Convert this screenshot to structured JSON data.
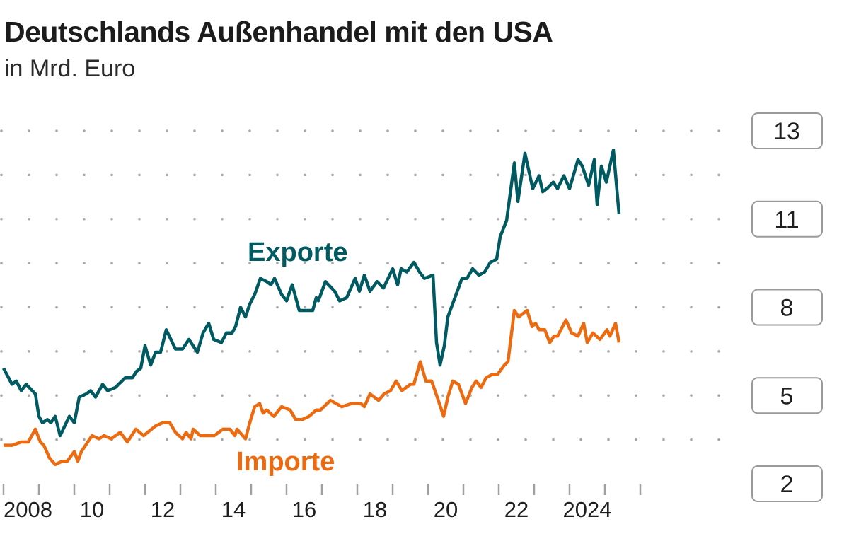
{
  "title": "Deutschlands Außenhandel mit den USA",
  "subtitle": "in Mrd. Euro",
  "chart_data": {
    "type": "line",
    "title": "Deutschlands Außenhandel mit den USA",
    "subtitle": "in Mrd. Euro",
    "xlabel": "",
    "ylabel": "",
    "x_tick_labels": [
      "2008",
      "10",
      "12",
      "14",
      "16",
      "18",
      "20",
      "22",
      "2024"
    ],
    "x_tick_years": [
      2008,
      2010,
      2012,
      2014,
      2016,
      2018,
      2020,
      2022,
      2024
    ],
    "xlim": [
      2008,
      2026
    ],
    "y_tick_labels": [
      "13",
      "11",
      "8",
      "5",
      "2"
    ],
    "ylim": [
      2,
      13
    ],
    "grid": "dotted horizontal",
    "colors": {
      "Exporte": "#005a62",
      "Importe": "#ec6b10"
    },
    "series": [
      {
        "name": "Exporte",
        "points": [
          [
            2008.0,
            5.6
          ],
          [
            2008.24,
            5.1
          ],
          [
            2008.36,
            5.2
          ],
          [
            2008.5,
            4.9
          ],
          [
            2008.64,
            5.1
          ],
          [
            2008.9,
            4.8
          ],
          [
            2009.0,
            4.1
          ],
          [
            2009.1,
            3.9
          ],
          [
            2009.24,
            4.0
          ],
          [
            2009.34,
            3.9
          ],
          [
            2009.46,
            4.1
          ],
          [
            2009.6,
            3.5
          ],
          [
            2009.86,
            4.1
          ],
          [
            2010.0,
            3.9
          ],
          [
            2010.14,
            4.7
          ],
          [
            2010.34,
            4.8
          ],
          [
            2010.46,
            4.9
          ],
          [
            2010.6,
            4.7
          ],
          [
            2010.8,
            5.1
          ],
          [
            2010.94,
            4.9
          ],
          [
            2011.16,
            5.0
          ],
          [
            2011.44,
            5.3
          ],
          [
            2011.64,
            5.3
          ],
          [
            2011.76,
            5.5
          ],
          [
            2011.88,
            5.6
          ],
          [
            2012.0,
            6.3
          ],
          [
            2012.16,
            5.7
          ],
          [
            2012.3,
            6.1
          ],
          [
            2012.44,
            6.1
          ],
          [
            2012.6,
            6.8
          ],
          [
            2012.86,
            6.2
          ],
          [
            2013.06,
            6.2
          ],
          [
            2013.24,
            6.5
          ],
          [
            2013.48,
            6.1
          ],
          [
            2013.64,
            6.7
          ],
          [
            2013.8,
            7.0
          ],
          [
            2013.94,
            6.5
          ],
          [
            2014.16,
            6.4
          ],
          [
            2014.3,
            6.7
          ],
          [
            2014.46,
            6.7
          ],
          [
            2014.56,
            6.9
          ],
          [
            2014.7,
            7.5
          ],
          [
            2014.84,
            7.2
          ],
          [
            2014.96,
            7.6
          ],
          [
            2015.1,
            7.9
          ],
          [
            2015.26,
            8.4
          ],
          [
            2015.44,
            8.3
          ],
          [
            2015.56,
            8.2
          ],
          [
            2015.66,
            8.4
          ],
          [
            2015.86,
            7.9
          ],
          [
            2016.0,
            7.7
          ],
          [
            2016.16,
            8.2
          ],
          [
            2016.36,
            7.4
          ],
          [
            2016.64,
            7.4
          ],
          [
            2016.74,
            7.4
          ],
          [
            2016.84,
            7.8
          ],
          [
            2016.9,
            7.7
          ],
          [
            2017.1,
            8.3
          ],
          [
            2017.36,
            8.0
          ],
          [
            2017.5,
            7.7
          ],
          [
            2017.7,
            7.8
          ],
          [
            2017.94,
            8.4
          ],
          [
            2018.06,
            8.0
          ],
          [
            2018.2,
            8.5
          ],
          [
            2018.36,
            8.0
          ],
          [
            2018.56,
            8.3
          ],
          [
            2018.74,
            8.1
          ],
          [
            2019.0,
            8.7
          ],
          [
            2019.14,
            8.2
          ],
          [
            2019.24,
            8.7
          ],
          [
            2019.4,
            8.6
          ],
          [
            2019.6,
            8.9
          ],
          [
            2019.76,
            8.6
          ],
          [
            2019.9,
            8.4
          ],
          [
            2020.14,
            8.5
          ],
          [
            2020.24,
            6.4
          ],
          [
            2020.34,
            5.7
          ],
          [
            2020.46,
            6.3
          ],
          [
            2020.56,
            7.2
          ],
          [
            2020.76,
            7.8
          ],
          [
            2020.96,
            8.4
          ],
          [
            2021.1,
            8.4
          ],
          [
            2021.26,
            8.7
          ],
          [
            2021.44,
            8.5
          ],
          [
            2021.6,
            8.6
          ],
          [
            2021.76,
            8.9
          ],
          [
            2021.94,
            9.0
          ],
          [
            2022.04,
            9.7
          ],
          [
            2022.22,
            10.2
          ],
          [
            2022.44,
            12.0
          ],
          [
            2022.54,
            10.8
          ],
          [
            2022.74,
            12.3
          ],
          [
            2022.96,
            11.2
          ],
          [
            2023.14,
            11.6
          ],
          [
            2023.24,
            11.1
          ],
          [
            2023.36,
            11.2
          ],
          [
            2023.54,
            11.4
          ],
          [
            2023.66,
            11.2
          ],
          [
            2023.84,
            11.6
          ],
          [
            2024.0,
            11.2
          ],
          [
            2024.24,
            12.1
          ],
          [
            2024.36,
            11.9
          ],
          [
            2024.54,
            11.3
          ],
          [
            2024.7,
            12.1
          ],
          [
            2024.78,
            10.7
          ],
          [
            2024.9,
            11.9
          ],
          [
            2025.04,
            11.4
          ],
          [
            2025.24,
            12.4
          ],
          [
            2025.4,
            10.4
          ]
        ]
      },
      {
        "name": "Importe",
        "points": [
          [
            2008.0,
            3.2
          ],
          [
            2008.24,
            3.2
          ],
          [
            2008.5,
            3.3
          ],
          [
            2008.7,
            3.3
          ],
          [
            2008.9,
            3.7
          ],
          [
            2009.04,
            3.3
          ],
          [
            2009.14,
            3.2
          ],
          [
            2009.3,
            2.8
          ],
          [
            2009.46,
            2.6
          ],
          [
            2009.66,
            2.7
          ],
          [
            2009.8,
            2.7
          ],
          [
            2010.0,
            3.0
          ],
          [
            2010.1,
            2.7
          ],
          [
            2010.2,
            3.0
          ],
          [
            2010.5,
            3.5
          ],
          [
            2010.7,
            3.4
          ],
          [
            2010.84,
            3.5
          ],
          [
            2011.04,
            3.4
          ],
          [
            2011.3,
            3.6
          ],
          [
            2011.5,
            3.3
          ],
          [
            2011.74,
            3.7
          ],
          [
            2011.96,
            3.5
          ],
          [
            2012.3,
            3.8
          ],
          [
            2012.5,
            3.9
          ],
          [
            2012.7,
            3.9
          ],
          [
            2012.86,
            3.6
          ],
          [
            2013.06,
            3.4
          ],
          [
            2013.16,
            3.6
          ],
          [
            2013.3,
            3.4
          ],
          [
            2013.36,
            3.7
          ],
          [
            2013.56,
            3.5
          ],
          [
            2013.84,
            3.5
          ],
          [
            2013.96,
            3.5
          ],
          [
            2014.2,
            3.7
          ],
          [
            2014.4,
            3.7
          ],
          [
            2014.54,
            3.5
          ],
          [
            2014.6,
            3.7
          ],
          [
            2014.84,
            3.4
          ],
          [
            2014.96,
            3.9
          ],
          [
            2015.1,
            4.4
          ],
          [
            2015.24,
            4.5
          ],
          [
            2015.34,
            4.2
          ],
          [
            2015.44,
            4.3
          ],
          [
            2015.64,
            4.1
          ],
          [
            2015.86,
            4.4
          ],
          [
            2016.1,
            4.3
          ],
          [
            2016.26,
            4.0
          ],
          [
            2016.44,
            4.0
          ],
          [
            2016.64,
            4.1
          ],
          [
            2016.84,
            4.3
          ],
          [
            2016.96,
            4.3
          ],
          [
            2017.24,
            4.6
          ],
          [
            2017.56,
            4.4
          ],
          [
            2017.84,
            4.5
          ],
          [
            2018.1,
            4.5
          ],
          [
            2018.2,
            4.4
          ],
          [
            2018.36,
            4.8
          ],
          [
            2018.6,
            4.6
          ],
          [
            2018.76,
            4.8
          ],
          [
            2018.94,
            4.9
          ],
          [
            2019.1,
            5.2
          ],
          [
            2019.26,
            4.9
          ],
          [
            2019.5,
            5.1
          ],
          [
            2019.6,
            5.1
          ],
          [
            2019.78,
            5.8
          ],
          [
            2019.94,
            5.2
          ],
          [
            2020.1,
            5.2
          ],
          [
            2020.26,
            4.7
          ],
          [
            2020.44,
            4.1
          ],
          [
            2020.56,
            4.7
          ],
          [
            2020.7,
            5.2
          ],
          [
            2020.86,
            5.1
          ],
          [
            2021.06,
            4.5
          ],
          [
            2021.24,
            5.0
          ],
          [
            2021.36,
            5.2
          ],
          [
            2021.5,
            5.0
          ],
          [
            2021.64,
            5.3
          ],
          [
            2021.8,
            5.4
          ],
          [
            2021.96,
            5.4
          ],
          [
            2022.16,
            5.7
          ],
          [
            2022.26,
            5.8
          ],
          [
            2022.44,
            7.4
          ],
          [
            2022.56,
            7.2
          ],
          [
            2022.8,
            7.4
          ],
          [
            2022.94,
            6.9
          ],
          [
            2023.04,
            7.0
          ],
          [
            2023.14,
            6.8
          ],
          [
            2023.3,
            6.8
          ],
          [
            2023.44,
            6.4
          ],
          [
            2023.56,
            6.6
          ],
          [
            2023.66,
            6.6
          ],
          [
            2023.9,
            7.1
          ],
          [
            2024.06,
            6.7
          ],
          [
            2024.24,
            6.6
          ],
          [
            2024.4,
            7.0
          ],
          [
            2024.5,
            6.4
          ],
          [
            2024.66,
            6.7
          ],
          [
            2024.86,
            6.5
          ],
          [
            2025.06,
            6.8
          ],
          [
            2025.14,
            6.6
          ],
          [
            2025.3,
            7.0
          ],
          [
            2025.4,
            6.4
          ]
        ]
      }
    ],
    "annotations": [
      "Exporte",
      "Importe"
    ]
  }
}
